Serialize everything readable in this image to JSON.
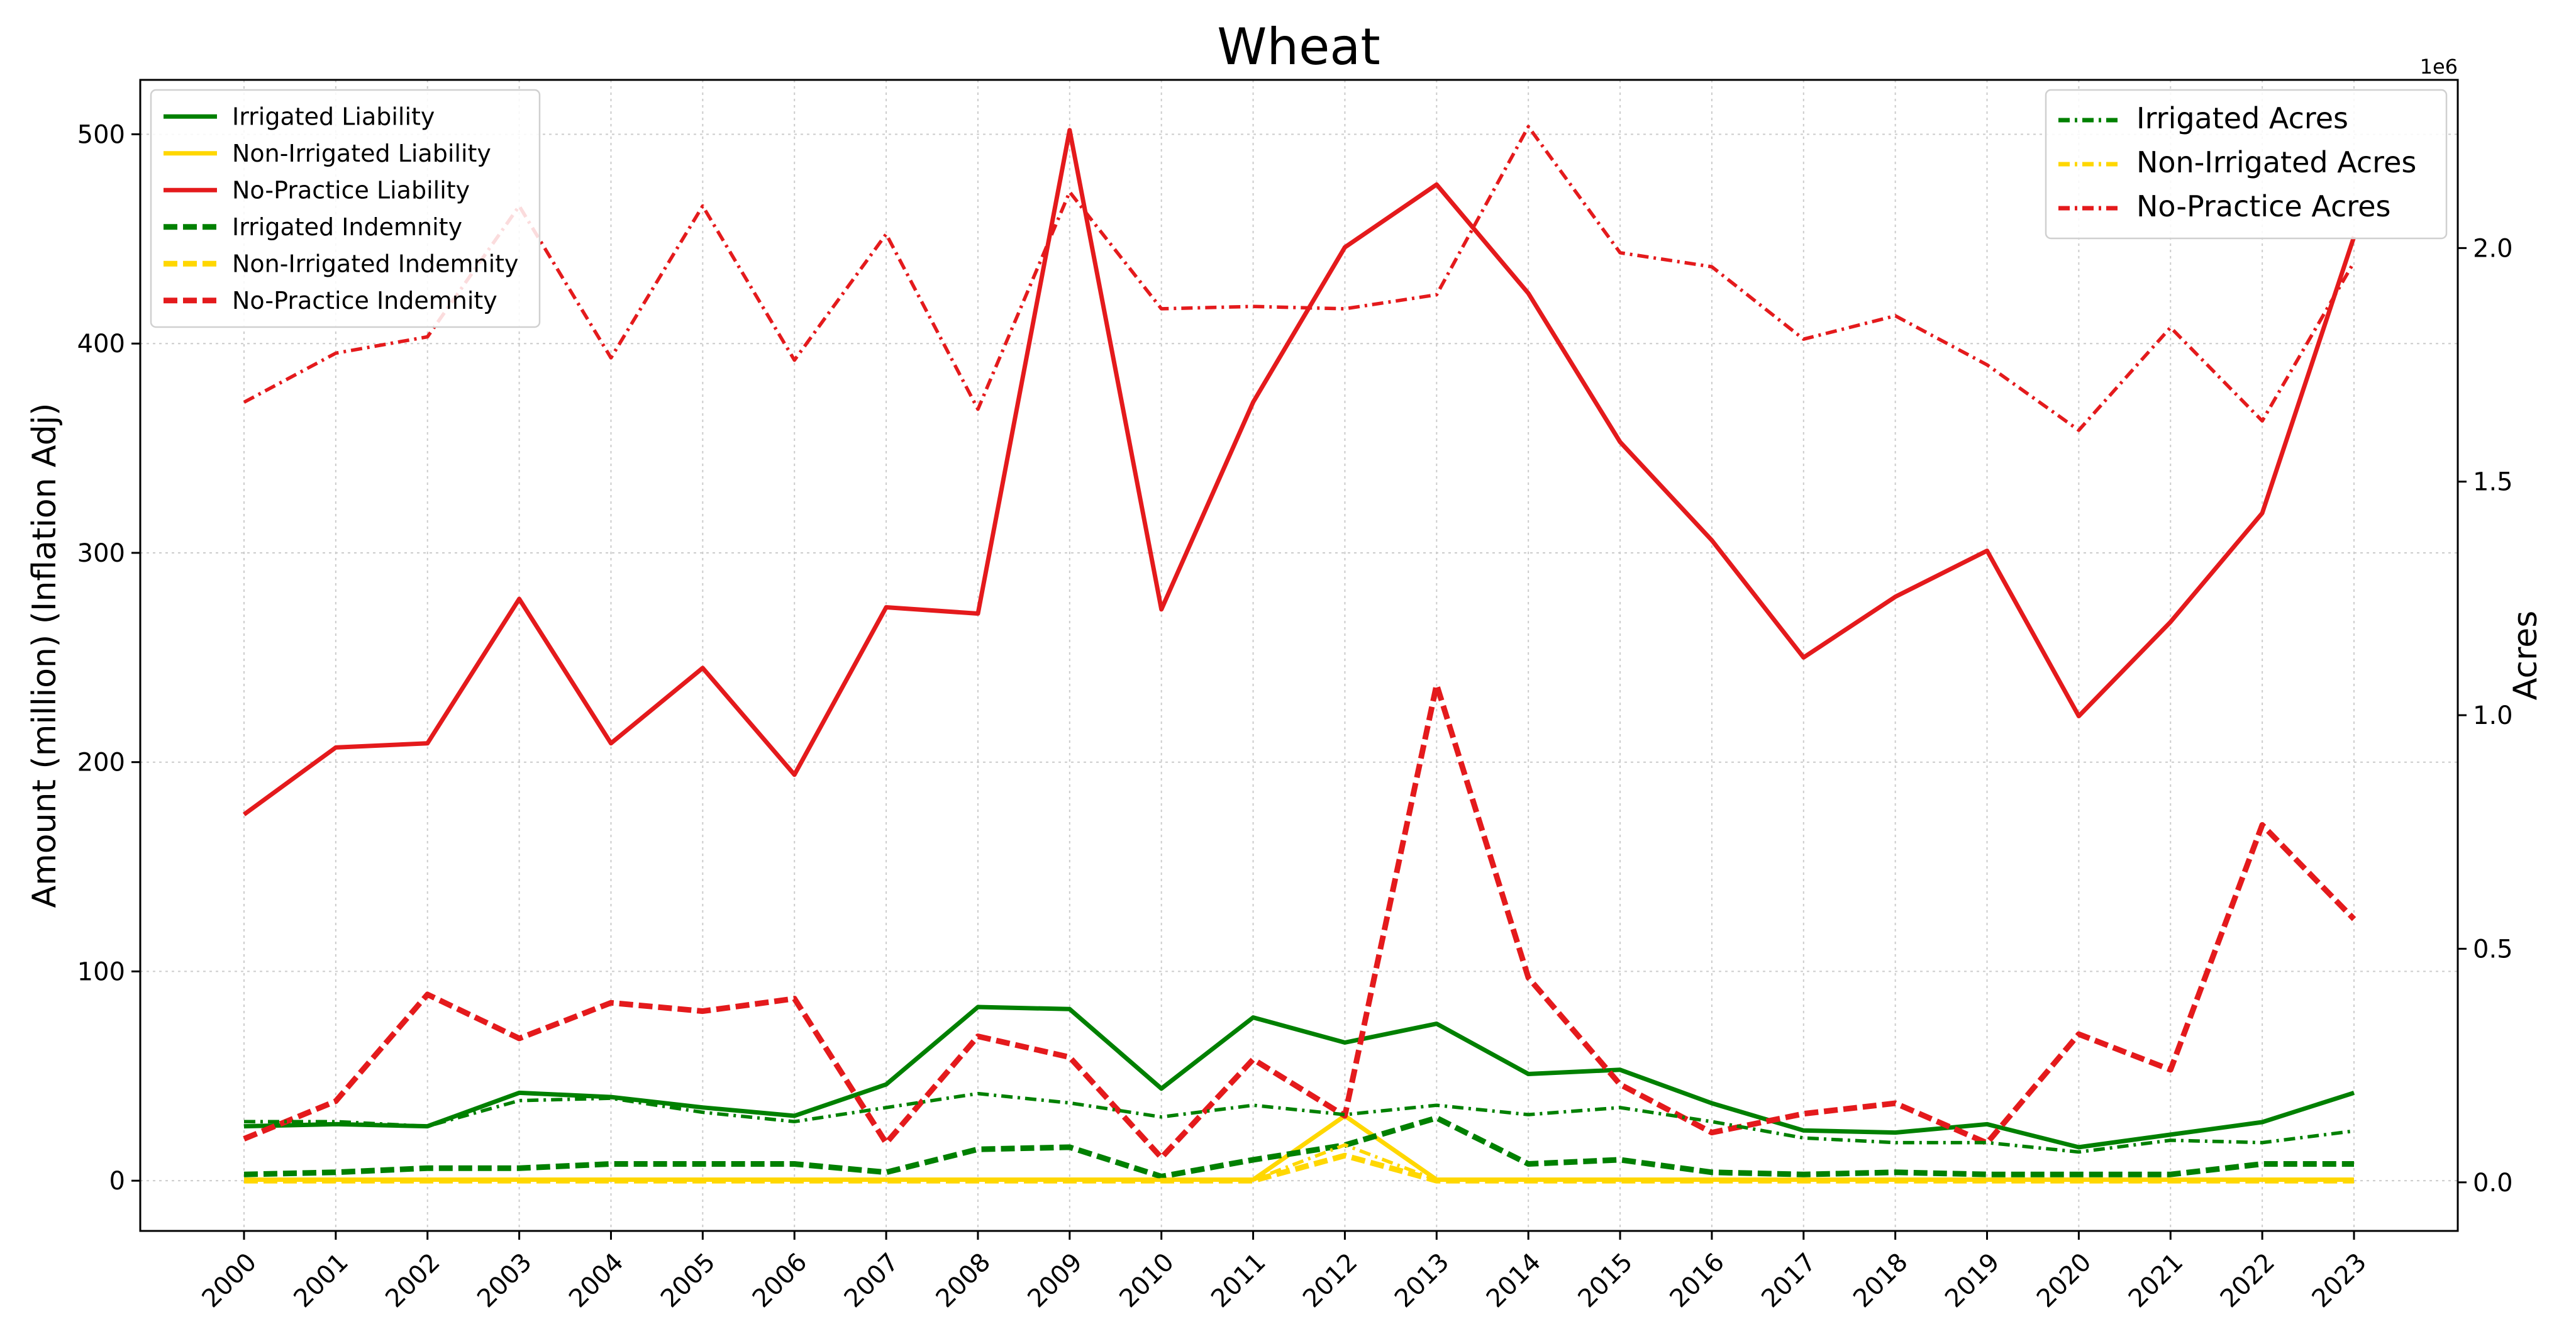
{
  "chart_data": {
    "type": "line",
    "title": "Wheat",
    "xlabel": "",
    "ylabel": "Amount (million) (Inflation Adj)",
    "y2label": "Acres",
    "y2_offset_label": "1e6",
    "x": [
      "2000",
      "2001",
      "2002",
      "2003",
      "2004",
      "2005",
      "2006",
      "2007",
      "2008",
      "2009",
      "2010",
      "2011",
      "2012",
      "2013",
      "2014",
      "2015",
      "2016",
      "2017",
      "2018",
      "2019",
      "2020",
      "2021",
      "2022",
      "2023"
    ],
    "ylim": [
      -24,
      526
    ],
    "y2lim": [
      -0.104,
      2.36
    ],
    "yticks": [
      0,
      100,
      200,
      300,
      400,
      500
    ],
    "y2ticks": [
      "0.0",
      "0.5",
      "1.0",
      "1.5",
      "2.0"
    ],
    "grid": true,
    "colors": {
      "green": "#008000",
      "yellow": "#FFD700",
      "red": "#E41A1C"
    },
    "legend_left_placement": "upper-left",
    "legend_right_placement": "upper-right",
    "series": [
      {
        "name": "Irrigated Liability",
        "axis": "left",
        "color": "green",
        "style": "solid",
        "values": [
          26,
          27,
          26,
          42,
          40,
          35,
          31,
          46,
          83,
          82,
          44,
          78,
          66,
          75,
          51,
          53,
          37,
          24,
          23,
          27,
          16,
          22,
          28,
          42
        ]
      },
      {
        "name": "Non-Irrigated Liability",
        "axis": "left",
        "color": "yellow",
        "style": "solid",
        "values": [
          0.5,
          0.5,
          0.5,
          0.5,
          0.5,
          0.5,
          0.5,
          0.5,
          0.5,
          0.5,
          0.5,
          0.5,
          31,
          0.5,
          0.5,
          0.5,
          0.5,
          0.5,
          0.5,
          0.5,
          0.5,
          0.5,
          0.5,
          0.5
        ]
      },
      {
        "name": "No-Practice Liability",
        "axis": "left",
        "color": "red",
        "style": "solid",
        "values": [
          175,
          207,
          209,
          278,
          209,
          245,
          194,
          274,
          271,
          502,
          273,
          372,
          446,
          476,
          424,
          353,
          306,
          250,
          279,
          301,
          222,
          267,
          319,
          451
        ]
      },
      {
        "name": "Irrigated Indemnity",
        "axis": "left",
        "color": "green",
        "style": "dashed",
        "values": [
          3,
          4,
          6,
          6,
          8,
          8,
          8,
          4,
          15,
          16,
          2,
          10,
          17,
          30,
          8,
          10,
          4,
          3,
          4,
          3,
          3,
          3,
          8,
          8
        ]
      },
      {
        "name": "Non-Irrigated Indemnity",
        "axis": "left",
        "color": "yellow",
        "style": "dashed",
        "values": [
          0,
          0,
          0,
          0,
          0,
          0,
          0,
          0,
          0,
          0,
          0,
          0,
          12,
          0,
          0,
          0,
          0,
          0,
          0,
          0,
          0,
          0,
          0,
          0
        ]
      },
      {
        "name": "No-Practice Indemnity",
        "axis": "left",
        "color": "red",
        "style": "dashed",
        "values": [
          20,
          38,
          89,
          68,
          85,
          81,
          87,
          18,
          69,
          59,
          11,
          58,
          31,
          237,
          97,
          46,
          23,
          32,
          37,
          18,
          70,
          53,
          170,
          125
        ]
      },
      {
        "name": "Irrigated Acres",
        "axis": "right",
        "color": "green",
        "style": "dashdot",
        "values": [
          0.13,
          0.13,
          0.12,
          0.175,
          0.18,
          0.15,
          0.13,
          0.16,
          0.19,
          0.17,
          0.14,
          0.165,
          0.145,
          0.165,
          0.145,
          0.16,
          0.13,
          0.095,
          0.085,
          0.085,
          0.065,
          0.09,
          0.085,
          0.11
        ]
      },
      {
        "name": "Non-Irrigated Acres",
        "axis": "right",
        "color": "yellow",
        "style": "dashdot",
        "values": [
          0.005,
          0.005,
          0.005,
          0.005,
          0.005,
          0.005,
          0.005,
          0.005,
          0.005,
          0.005,
          0.005,
          0.005,
          0.08,
          0.005,
          0.005,
          0.005,
          0.005,
          0.005,
          0.005,
          0.005,
          0.005,
          0.005,
          0.005,
          0.005
        ]
      },
      {
        "name": "No-Practice Acres",
        "axis": "right",
        "color": "red",
        "style": "dashdot",
        "values": [
          1.67,
          1.775,
          1.81,
          2.09,
          1.765,
          2.09,
          1.76,
          2.03,
          1.655,
          2.12,
          1.87,
          1.875,
          1.87,
          1.9,
          2.26,
          1.99,
          1.96,
          1.805,
          1.855,
          1.75,
          1.61,
          1.83,
          1.63,
          1.97
        ]
      }
    ]
  }
}
